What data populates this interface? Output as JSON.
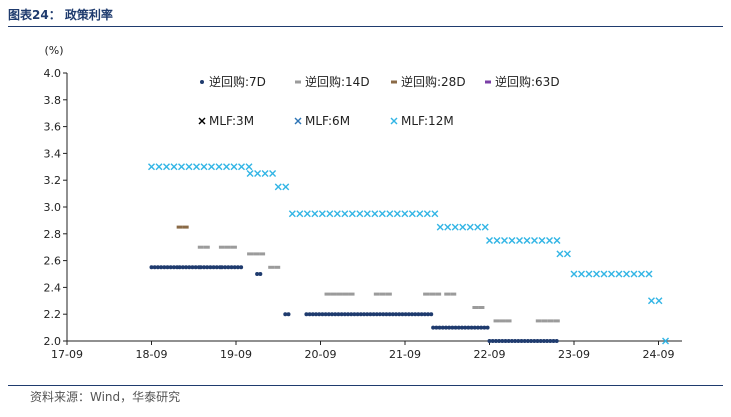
{
  "header": {
    "title": "图表24： 政策利率"
  },
  "footer": {
    "source": "资料来源：Wind，华泰研究"
  },
  "colors": {
    "rr7d": "#1f3b6e",
    "rr14d": "#9b9b9b",
    "rr28d": "#8a6a46",
    "rr63d": "#7a3fa6",
    "mlf3m": "#000000",
    "mlf6m": "#2e75b6",
    "mlf12m": "#33b5e5",
    "axis": "#222222",
    "rule": "#1f3b6e"
  },
  "chart_data": {
    "type": "scatter",
    "title": "",
    "ylabel": "(%)",
    "xlabel": "",
    "ylim": [
      2.0,
      4.0
    ],
    "yticks": [
      "4.0",
      "3.8",
      "3.6",
      "3.4",
      "3.2",
      "3.0",
      "2.8",
      "2.6",
      "2.4",
      "2.2",
      "2.0"
    ],
    "xticks": [
      "17-09",
      "18-09",
      "19-09",
      "20-09",
      "21-09",
      "22-09",
      "23-09",
      "24-09"
    ],
    "xlim": [
      "2017-09",
      "2024-09"
    ],
    "grid": false,
    "legend": "top, two rows",
    "series": [
      {
        "name": "逆回购:7D",
        "key": "rr7d",
        "marker": "dot",
        "segments": [
          {
            "from": "2018-09",
            "to": "2018-12",
            "value": 2.55
          },
          {
            "from": "2019-01",
            "to": "2019-03",
            "value": 2.55
          },
          {
            "from": "2019-04",
            "to": "2019-06",
            "value": 2.55
          },
          {
            "from": "2019-07",
            "to": "2019-09",
            "value": 2.55
          },
          {
            "from": "2019-12",
            "to": "2019-12",
            "value": 2.5
          },
          {
            "from": "2020-04",
            "to": "2020-04",
            "value": 2.2
          },
          {
            "from": "2020-07",
            "to": "2021-12",
            "value": 2.2
          },
          {
            "from": "2022-01",
            "to": "2022-08",
            "value": 2.1
          },
          {
            "from": "2022-09",
            "to": "2023-06",
            "value": 2.0
          }
        ]
      },
      {
        "name": "逆回购:14D",
        "key": "rr14d",
        "marker": "dash",
        "segments": [
          {
            "from": "2019-04",
            "to": "2019-04",
            "value": 2.7
          },
          {
            "from": "2019-07",
            "to": "2019-08",
            "value": 2.7
          },
          {
            "from": "2019-11",
            "to": "2019-12",
            "value": 2.65
          },
          {
            "from": "2020-02",
            "to": "2020-02",
            "value": 2.55
          },
          {
            "from": "2020-10",
            "to": "2021-01",
            "value": 2.35
          },
          {
            "from": "2021-05",
            "to": "2021-06",
            "value": 2.35
          },
          {
            "from": "2021-12",
            "to": "2022-01",
            "value": 2.35
          },
          {
            "from": "2022-03",
            "to": "2022-03",
            "value": 2.35
          },
          {
            "from": "2022-07",
            "to": "2022-07",
            "value": 2.25
          },
          {
            "from": "2022-10",
            "to": "2022-11",
            "value": 2.15
          },
          {
            "from": "2023-04",
            "to": "2023-06",
            "value": 2.15
          }
        ]
      },
      {
        "name": "逆回购:28D",
        "key": "rr28d",
        "marker": "dash",
        "segments": [
          {
            "from": "2019-01",
            "to": "2019-01",
            "value": 2.85
          }
        ]
      },
      {
        "name": "逆回购:63D",
        "key": "rr63d",
        "marker": "dash",
        "segments": []
      },
      {
        "name": "MLF:3M",
        "key": "mlf3m",
        "marker": "cross",
        "segments": []
      },
      {
        "name": "MLF:6M",
        "key": "mlf6m",
        "marker": "cross",
        "segments": []
      },
      {
        "name": "MLF:12M",
        "key": "mlf12m",
        "marker": "cross",
        "segments": [
          {
            "from": "2018-09",
            "to": "2019-10",
            "value": 3.3
          },
          {
            "from": "2019-11",
            "to": "2020-02",
            "value": 3.25
          },
          {
            "from": "2020-03",
            "to": "2020-04",
            "value": 3.15
          },
          {
            "from": "2020-05",
            "to": "2022-01",
            "value": 2.95
          },
          {
            "from": "2022-02",
            "to": "2022-08",
            "value": 2.85
          },
          {
            "from": "2022-09",
            "to": "2023-06",
            "value": 2.75
          },
          {
            "from": "2023-07",
            "to": "2023-08",
            "value": 2.65
          },
          {
            "from": "2023-09",
            "to": "2024-07",
            "value": 2.5
          },
          {
            "from": "2024-08",
            "to": "2024-09",
            "value": 2.3
          },
          {
            "from": "2024-10",
            "to": "2024-10",
            "value": 2.0
          }
        ]
      }
    ]
  }
}
